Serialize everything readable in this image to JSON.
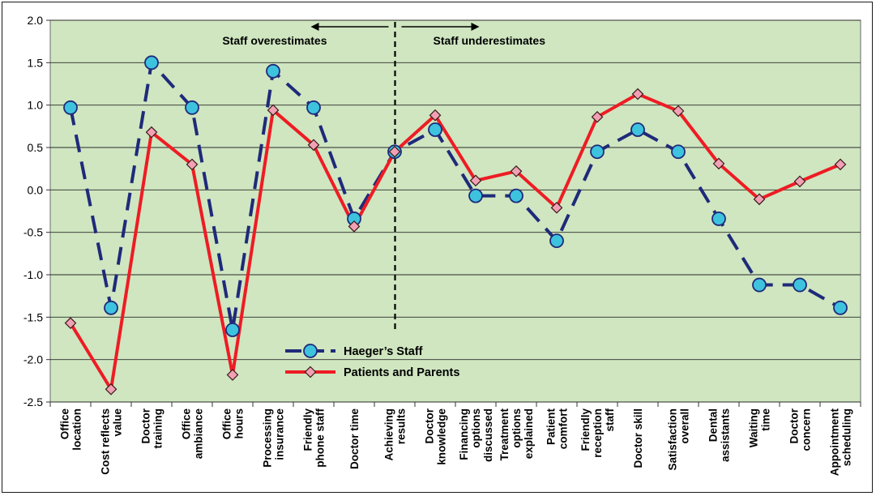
{
  "chart_data": {
    "type": "line",
    "title": "",
    "xlabel": "",
    "ylabel": "",
    "ylim": [
      -2.5,
      2.0
    ],
    "yticks": [
      "2.0",
      "1.5",
      "1.0",
      "0.5",
      "0.0",
      "-0.5",
      "-1.0",
      "-1.5",
      "-2.0",
      "-2.5"
    ],
    "grid": true,
    "background_color": "#cfe6c0",
    "categories": [
      [
        "Office",
        "location"
      ],
      [
        "Cost reflects",
        "value"
      ],
      [
        "Doctor",
        "training"
      ],
      [
        "Office",
        "ambiance"
      ],
      [
        "Office",
        "hours"
      ],
      [
        "Processing",
        "insurance"
      ],
      [
        "Friendly",
        "phone staff"
      ],
      [
        "Doctor time"
      ],
      [
        "Achieving",
        "results"
      ],
      [
        "Doctor",
        "knowledge"
      ],
      [
        "Financing",
        "options",
        "discussed"
      ],
      [
        "Treatment",
        "options",
        "explained"
      ],
      [
        "Patient",
        "comfort"
      ],
      [
        "Friendly",
        "reception",
        "staff"
      ],
      [
        "Doctor skill"
      ],
      [
        "Satisfaction",
        "overall"
      ],
      [
        "Dental",
        "assistants"
      ],
      [
        "Waiting",
        "time"
      ],
      [
        "Doctor",
        "concern"
      ],
      [
        "Appointment",
        "scheduling"
      ]
    ],
    "series": [
      {
        "name": "Haeger’s Staff",
        "color": "#1f2a7a",
        "marker_color": "#3ec3de",
        "line_style": "dashed",
        "marker": "circle",
        "values": [
          0.97,
          -1.39,
          1.5,
          0.97,
          -1.65,
          1.4,
          0.97,
          -0.34,
          0.45,
          0.71,
          -0.07,
          -0.07,
          -0.6,
          0.45,
          0.71,
          0.45,
          -0.34,
          -1.12,
          -1.12,
          -1.39
        ]
      },
      {
        "name": "Patients and Parents",
        "color": "#ee1c24",
        "marker_color": "#f2a0b4",
        "line_style": "solid",
        "marker": "diamond",
        "values": [
          -1.57,
          -2.35,
          0.68,
          0.3,
          -2.18,
          0.94,
          0.53,
          -0.43,
          0.45,
          0.88,
          0.11,
          0.22,
          -0.21,
          0.86,
          1.13,
          0.93,
          0.31,
          -0.11,
          0.1,
          0.3
        ]
      }
    ],
    "divider_after_index": 8,
    "annotations": {
      "left": "Staff overestimates",
      "right": "Staff underestimates"
    },
    "legend_position": "center-bottom"
  }
}
